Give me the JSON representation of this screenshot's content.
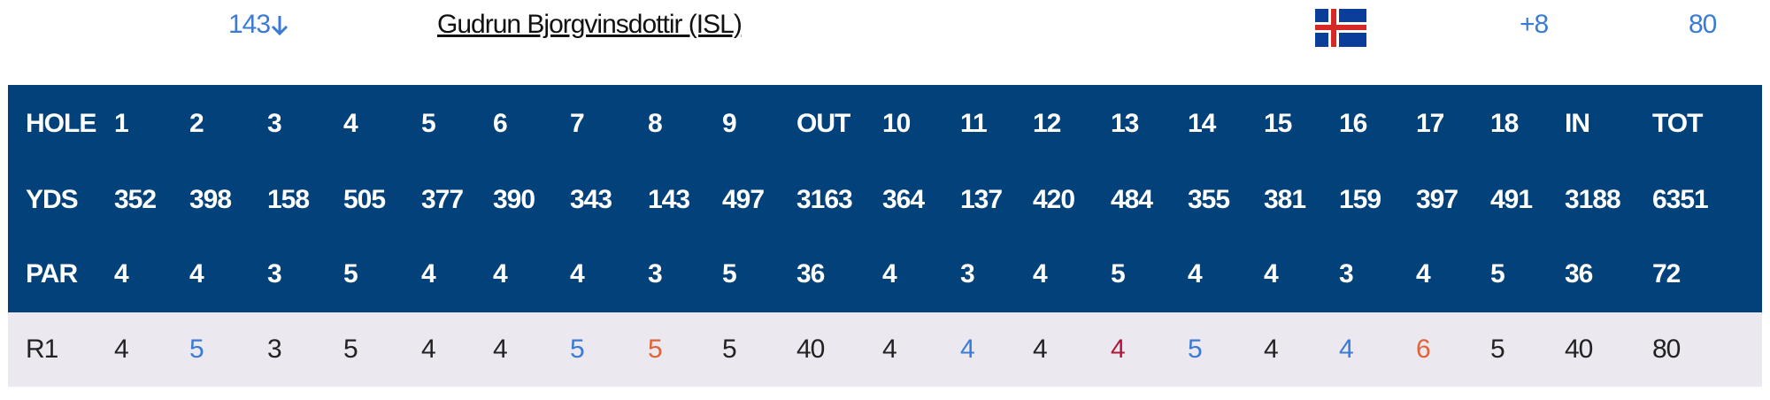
{
  "player": {
    "position": "143",
    "name": "Gudrun Bjorgvinsdottir (ISL)",
    "to_par": "+8",
    "total": "80"
  },
  "table": {
    "rows": [
      [
        "HOLE",
        "1",
        "2",
        "3",
        "4",
        "5",
        "6",
        "7",
        "8",
        "9",
        "OUT",
        "10",
        "11",
        "12",
        "13",
        "14",
        "15",
        "16",
        "17",
        "18",
        "IN",
        "TOT"
      ],
      [
        "YDS",
        "352",
        "398",
        "158",
        "505",
        "377",
        "390",
        "343",
        "143",
        "497",
        "3163",
        "364",
        "137",
        "420",
        "484",
        "355",
        "381",
        "159",
        "397",
        "491",
        "3188",
        "6351"
      ],
      [
        "PAR",
        "4",
        "4",
        "3",
        "5",
        "4",
        "4",
        "4",
        "3",
        "5",
        "36",
        "4",
        "3",
        "4",
        "5",
        "4",
        "4",
        "3",
        "4",
        "5",
        "36",
        "72"
      ],
      [
        "R1",
        "4",
        "5",
        "3",
        "5",
        "4",
        "4",
        "5",
        "5",
        "5",
        "40",
        "4",
        "4",
        "4",
        "4",
        "5",
        "4",
        "4",
        "6",
        "5",
        "40",
        "80"
      ]
    ],
    "score_colors": [
      "#222",
      "#222",
      "#3a7bd5",
      "#222",
      "#222",
      "#222",
      "#222",
      "#3a7bd5",
      "#e0643a",
      "#222",
      "#222",
      "#222",
      "#3a7bd5",
      "#222",
      "#b0173a",
      "#3a7bd5",
      "#222",
      "#3a7bd5",
      "#e0643a",
      "#222",
      "#222",
      "#222"
    ]
  }
}
